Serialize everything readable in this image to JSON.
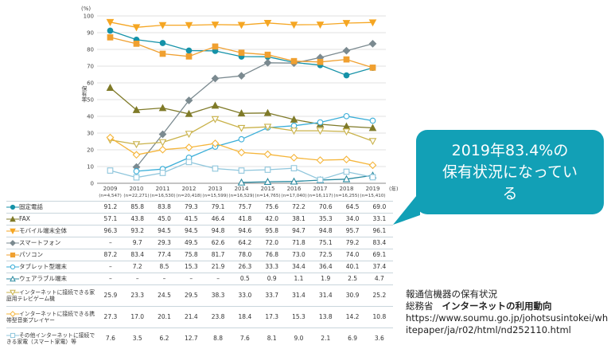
{
  "chart_data": {
    "type": "line",
    "unit_label": "(%)",
    "ylabel": "保有率",
    "year_suffix": "(年)",
    "ylim": [
      0,
      100
    ],
    "yticks": [
      0,
      10,
      20,
      30,
      40,
      50,
      60,
      70,
      80,
      90,
      100
    ],
    "years": [
      "2009",
      "2010",
      "2011",
      "2012",
      "2013",
      "2014",
      "2015",
      "2016",
      "2017",
      "2018",
      "2019"
    ],
    "sample_sizes": [
      "(n=4,547)",
      "(n=22,271)",
      "(n=16,530)",
      "(n=20,418)",
      "(n=15,599)",
      "(n=16,529)",
      "(n=14,765)",
      "(n=17,040)",
      "(n=16,117)",
      "(n=16,255)",
      "(n=15,410)"
    ],
    "series": [
      {
        "name": "固定電話",
        "color": "#1592a8",
        "marker": "circle",
        "fill": true,
        "values": [
          91.2,
          85.8,
          83.8,
          79.3,
          79.1,
          75.7,
          75.6,
          72.2,
          70.6,
          64.5,
          69.0
        ],
        "display": [
          "91.2",
          "85.8",
          "83.8",
          "79.3",
          "79.1",
          "75.7",
          "75.6",
          "72.2",
          "70.6",
          "64.5",
          "69.0"
        ]
      },
      {
        "name": "FAX",
        "color": "#7f7a28",
        "marker": "triangle",
        "fill": true,
        "values": [
          57.1,
          43.8,
          45.0,
          41.5,
          46.4,
          41.8,
          42.0,
          38.1,
          35.3,
          34.0,
          33.1
        ],
        "display": [
          "57.1",
          "43.8",
          "45.0",
          "41.5",
          "46.4",
          "41.8",
          "42.0",
          "38.1",
          "35.3",
          "34.0",
          "33.1"
        ]
      },
      {
        "name": "モバイル端末全体",
        "color": "#f5a623",
        "marker": "triangle-down",
        "fill": true,
        "values": [
          96.3,
          93.2,
          94.5,
          94.5,
          94.8,
          94.6,
          95.8,
          94.7,
          94.8,
          95.7,
          96.1
        ],
        "display": [
          "96.3",
          "93.2",
          "94.5",
          "94.5",
          "94.8",
          "94.6",
          "95.8",
          "94.7",
          "94.8",
          "95.7",
          "96.1"
        ]
      },
      {
        "name": "スマートフォン",
        "color": "#7b8a90",
        "marker": "diamond",
        "fill": true,
        "values": [
          null,
          9.7,
          29.3,
          49.5,
          62.6,
          64.2,
          72.0,
          71.8,
          75.1,
          79.2,
          83.4
        ],
        "display": [
          "–",
          "9.7",
          "29.3",
          "49.5",
          "62.6",
          "64.2",
          "72.0",
          "71.8",
          "75.1",
          "79.2",
          "83.4"
        ]
      },
      {
        "name": "パソコン",
        "color": "#f0a030",
        "marker": "square",
        "fill": true,
        "values": [
          87.2,
          83.4,
          77.4,
          75.8,
          81.7,
          78.0,
          76.8,
          73.0,
          72.5,
          74.0,
          69.1
        ],
        "display": [
          "87.2",
          "83.4",
          "77.4",
          "75.8",
          "81.7",
          "78.0",
          "76.8",
          "73.0",
          "72.5",
          "74.0",
          "69.1"
        ]
      },
      {
        "name": "タブレット型端末",
        "color": "#3aaed8",
        "marker": "circle",
        "fill": false,
        "values": [
          null,
          7.2,
          8.5,
          15.3,
          21.9,
          26.3,
          33.3,
          34.4,
          36.4,
          40.1,
          37.4
        ],
        "display": [
          "–",
          "7.2",
          "8.5",
          "15.3",
          "21.9",
          "26.3",
          "33.3",
          "34.4",
          "36.4",
          "40.1",
          "37.4"
        ]
      },
      {
        "name": "ウェアラブル端末",
        "color": "#2a8aa0",
        "marker": "triangle",
        "fill": false,
        "values": [
          null,
          null,
          null,
          null,
          null,
          0.5,
          0.9,
          1.1,
          1.9,
          2.5,
          4.7
        ],
        "display": [
          "–",
          "–",
          "–",
          "–",
          "–",
          "0.5",
          "0.9",
          "1.1",
          "1.9",
          "2.5",
          "4.7"
        ]
      },
      {
        "name": "インターネットに接続できる家庭用テレビゲーム機",
        "color": "#c9b24a",
        "marker": "triangle-down",
        "fill": false,
        "values": [
          25.9,
          23.3,
          24.5,
          29.5,
          38.3,
          33.0,
          33.7,
          31.4,
          31.4,
          30.9,
          25.2
        ],
        "display": [
          "25.9",
          "23.3",
          "24.5",
          "29.5",
          "38.3",
          "33.0",
          "33.7",
          "31.4",
          "31.4",
          "30.9",
          "25.2"
        ]
      },
      {
        "name": "インターネットに接続できる携帯型音楽プレイヤー",
        "color": "#f5b53a",
        "marker": "diamond",
        "fill": false,
        "values": [
          27.3,
          17.0,
          20.1,
          21.4,
          23.8,
          18.4,
          17.3,
          15.3,
          13.8,
          14.2,
          10.8
        ],
        "display": [
          "27.3",
          "17.0",
          "20.1",
          "21.4",
          "23.8",
          "18.4",
          "17.3",
          "15.3",
          "13.8",
          "14.2",
          "10.8"
        ]
      },
      {
        "name": "その他インターネットに接続できる家電（スマート家電）等",
        "color": "#8fc6dc",
        "marker": "square",
        "fill": false,
        "values": [
          7.6,
          3.5,
          6.2,
          12.7,
          8.8,
          7.6,
          8.1,
          9.0,
          2.1,
          6.9,
          3.6
        ],
        "display": [
          "7.6",
          "3.5",
          "6.2",
          "12.7",
          "8.8",
          "7.6",
          "8.1",
          "9.0",
          "2.1",
          "6.9",
          "3.6"
        ]
      }
    ]
  },
  "callout": {
    "line1": "2019年83.4%の",
    "line2": "保有状況になってい",
    "line3": "る"
  },
  "source": {
    "caption": "報通信機器の保有状況",
    "org": "総務省",
    "title": "インターネットの利用動向",
    "url": "https://www.soumu.go.jp/johotsusintokei/whitepaper/ja/r02/html/nd252110.html"
  }
}
